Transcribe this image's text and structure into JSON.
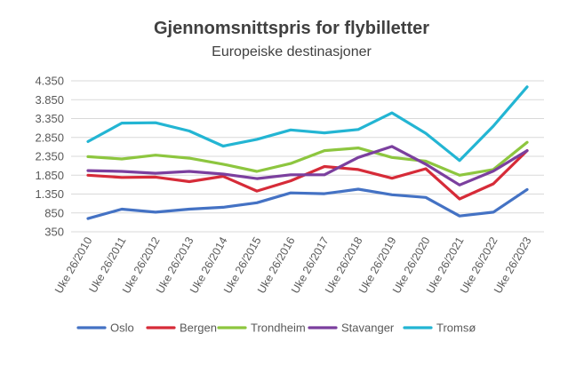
{
  "chart_data": {
    "type": "line",
    "title": "Gjennomsnittspris for flybilletter",
    "subtitle": "Europeiske destinasjoner",
    "xlabel": "",
    "ylabel": "",
    "categories": [
      "Uke 26/2010",
      "Uke 26/2011",
      "Uke 26/2012",
      "Uke 26/2013",
      "Uke 26/2014",
      "Uke 26/2015",
      "Uke 26/2016",
      "Uke 26/2017",
      "Uke 26/2018",
      "Uke 26/2019",
      "Uke 26/2020",
      "Uke 26/2021",
      "Uke 26/2022",
      "Uke 26/2023"
    ],
    "yticks": [
      350,
      850,
      1350,
      1850,
      2350,
      2850,
      3350,
      3850,
      4350
    ],
    "ytick_labels": [
      "350",
      "850",
      "1.350",
      "1.850",
      "2.350",
      "2.850",
      "3.350",
      "3.850",
      "4.350"
    ],
    "ylim": [
      350,
      4350
    ],
    "grid": true,
    "legend_position": "bottom",
    "series": [
      {
        "name": "Oslo",
        "color": "#4472c4",
        "values": [
          700,
          950,
          870,
          950,
          1000,
          1120,
          1380,
          1360,
          1480,
          1330,
          1260,
          770,
          870,
          1470
        ]
      },
      {
        "name": "Bergen",
        "color": "#d62b38",
        "values": [
          1850,
          1790,
          1800,
          1680,
          1820,
          1430,
          1700,
          2080,
          2000,
          1770,
          2020,
          1220,
          1620,
          2500
        ]
      },
      {
        "name": "Trondheim",
        "color": "#8dc63f",
        "values": [
          2340,
          2280,
          2380,
          2300,
          2140,
          1950,
          2160,
          2500,
          2570,
          2320,
          2220,
          1850,
          2000,
          2720
        ]
      },
      {
        "name": "Stavanger",
        "color": "#7b3f9e",
        "values": [
          1970,
          1950,
          1900,
          1950,
          1880,
          1760,
          1860,
          1860,
          2320,
          2610,
          2140,
          1590,
          1960,
          2500
        ]
      },
      {
        "name": "Tromsø",
        "color": "#23b5d3",
        "values": [
          2740,
          3230,
          3240,
          3020,
          2620,
          2800,
          3050,
          2970,
          3060,
          3500,
          2960,
          2240,
          3150,
          4190
        ]
      }
    ]
  }
}
